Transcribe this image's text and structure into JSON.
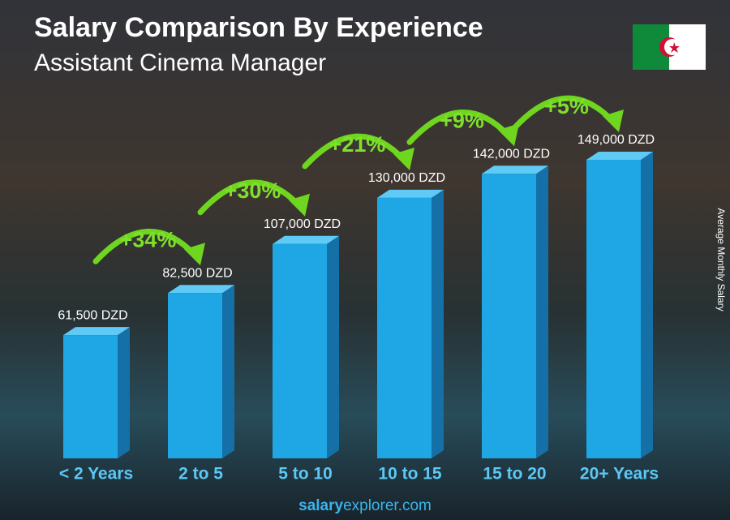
{
  "chart_data": {
    "type": "bar3d",
    "title": "Salary Comparison By Experience",
    "subtitle": "Assistant Cinema Manager",
    "y_axis_label": "Average Monthly Salary",
    "categories": [
      "< 2 Years",
      "2 to 5",
      "5 to 10",
      "10 to 15",
      "15 to 20",
      "20+ Years"
    ],
    "values": [
      61500,
      82500,
      107000,
      130000,
      142000,
      149000
    ],
    "value_labels": [
      "61,500 DZD",
      "82,500 DZD",
      "107,000 DZD",
      "130,000 DZD",
      "142,000 DZD",
      "149,000 DZD"
    ],
    "annotations": [
      "+34%",
      "+30%",
      "+21%",
      "+9%",
      "+5%"
    ],
    "color": "#1ea7e4",
    "footer": {
      "bold": "salary",
      "rest": "explorer.com"
    }
  }
}
